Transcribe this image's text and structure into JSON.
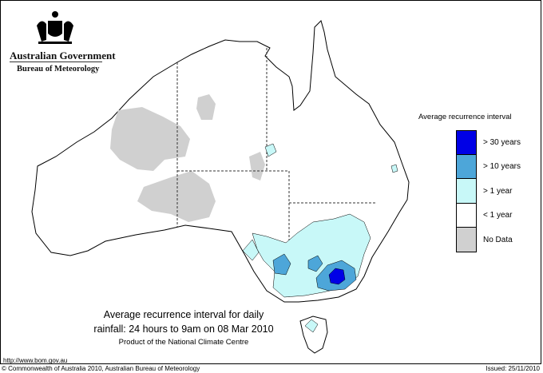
{
  "header": {
    "government": "Australian Government",
    "bureau": "Bureau of Meteorology"
  },
  "legend": {
    "title": "Average recurrence interval",
    "items": [
      {
        "label": "> 30 years",
        "color": "#0000e6"
      },
      {
        "label": "> 10 years",
        "color": "#4da6d9"
      },
      {
        "label": "> 1 year",
        "color": "#c8f8f8"
      },
      {
        "label": "< 1 year",
        "color": "#ffffff"
      },
      {
        "label": "No Data",
        "color": "#d0d0d0"
      }
    ]
  },
  "caption": {
    "line1": "Average recurrence interval for daily",
    "line2": "rainfall: 24 hours to 9am on 08 Mar 2010",
    "line3": "Product of the National Climate Centre"
  },
  "footer": {
    "url": "http://www.bom.gov.au",
    "copyright": "© Commonwealth of Australia 2010, Australian Bureau of Meteorology",
    "issued": "Issued: 25/11/2010"
  },
  "colors": {
    "outline": "#000000",
    "border_dash": "#333333",
    "gt30": "#0000e6",
    "gt10": "#4da6d9",
    "gt1": "#c8f8f8",
    "nodata": "#d0d0d0"
  }
}
